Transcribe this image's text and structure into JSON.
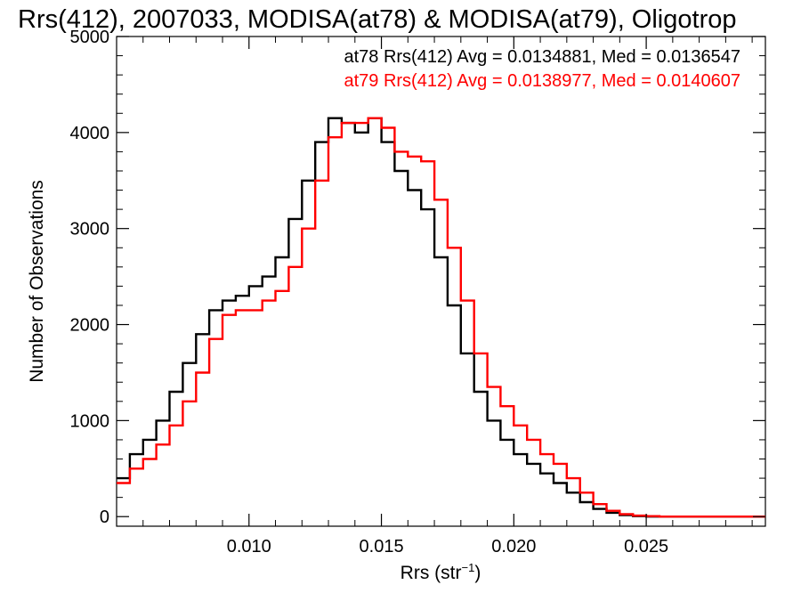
{
  "chart_data": {
    "type": "line",
    "title": "Rrs(412), 2007033, MODISA(at78) & MODISA(at79), Oligotrop",
    "xlabel": "Rrs (str",
    "xlabel_exponent": "−1",
    "xlabel_close": ")",
    "ylabel": "Number of Observations",
    "xlim": [
      0.005,
      0.0295
    ],
    "ylim": [
      -100,
      5000
    ],
    "x_ticks": [
      0.01,
      0.015,
      0.02,
      0.025
    ],
    "x_tick_labels": [
      "0.010",
      "0.015",
      "0.020",
      "0.025"
    ],
    "y_ticks": [
      0,
      1000,
      2000,
      3000,
      4000,
      5000
    ],
    "y_tick_labels": [
      "0",
      "1000",
      "2000",
      "3000",
      "4000",
      "5000"
    ],
    "grid": false,
    "legend_position": "top-right",
    "legend": [
      {
        "text": "at78 Rrs(412) Avg = 0.0134881, Med = 0.0136547",
        "color": "#000000"
      },
      {
        "text": "at79 Rrs(412) Avg = 0.0138977, Med = 0.0140607",
        "color": "#ff0000"
      }
    ],
    "series": [
      {
        "name": "at78",
        "color": "#000000",
        "style": "step",
        "x": [
          0.005,
          0.0055,
          0.006,
          0.0065,
          0.007,
          0.0075,
          0.008,
          0.0085,
          0.009,
          0.0095,
          0.01,
          0.0105,
          0.011,
          0.0115,
          0.012,
          0.0125,
          0.013,
          0.0135,
          0.014,
          0.0145,
          0.015,
          0.0155,
          0.016,
          0.0165,
          0.017,
          0.0175,
          0.018,
          0.0185,
          0.019,
          0.0195,
          0.02,
          0.0205,
          0.021,
          0.0215,
          0.022,
          0.0225,
          0.023,
          0.0235,
          0.024,
          0.0245,
          0.025,
          0.0255,
          0.026,
          0.027,
          0.0295
        ],
        "y": [
          400,
          650,
          800,
          1000,
          1300,
          1600,
          1900,
          2150,
          2250,
          2300,
          2400,
          2500,
          2700,
          3100,
          3500,
          3900,
          4150,
          4100,
          4000,
          4150,
          3900,
          3600,
          3400,
          3200,
          2700,
          2200,
          1700,
          1300,
          1000,
          800,
          650,
          550,
          450,
          350,
          250,
          150,
          80,
          40,
          15,
          5,
          0,
          0,
          0,
          0,
          0
        ]
      },
      {
        "name": "at79",
        "color": "#ff0000",
        "style": "step",
        "x": [
          0.005,
          0.0055,
          0.006,
          0.0065,
          0.007,
          0.0075,
          0.008,
          0.0085,
          0.009,
          0.0095,
          0.01,
          0.0105,
          0.011,
          0.0115,
          0.012,
          0.0125,
          0.013,
          0.0135,
          0.014,
          0.0145,
          0.015,
          0.0155,
          0.016,
          0.0165,
          0.017,
          0.0175,
          0.018,
          0.0185,
          0.019,
          0.0195,
          0.02,
          0.0205,
          0.021,
          0.0215,
          0.022,
          0.0225,
          0.023,
          0.0235,
          0.024,
          0.0245,
          0.025,
          0.0255,
          0.026,
          0.027,
          0.0295
        ],
        "y": [
          350,
          500,
          600,
          750,
          950,
          1200,
          1500,
          1850,
          2100,
          2150,
          2150,
          2250,
          2350,
          2600,
          3000,
          3500,
          3950,
          4100,
          4100,
          4150,
          4050,
          3800,
          3750,
          3700,
          3300,
          2800,
          2250,
          1700,
          1350,
          1150,
          950,
          800,
          650,
          550,
          400,
          250,
          130,
          60,
          25,
          10,
          5,
          0,
          0,
          0,
          0
        ]
      }
    ]
  }
}
